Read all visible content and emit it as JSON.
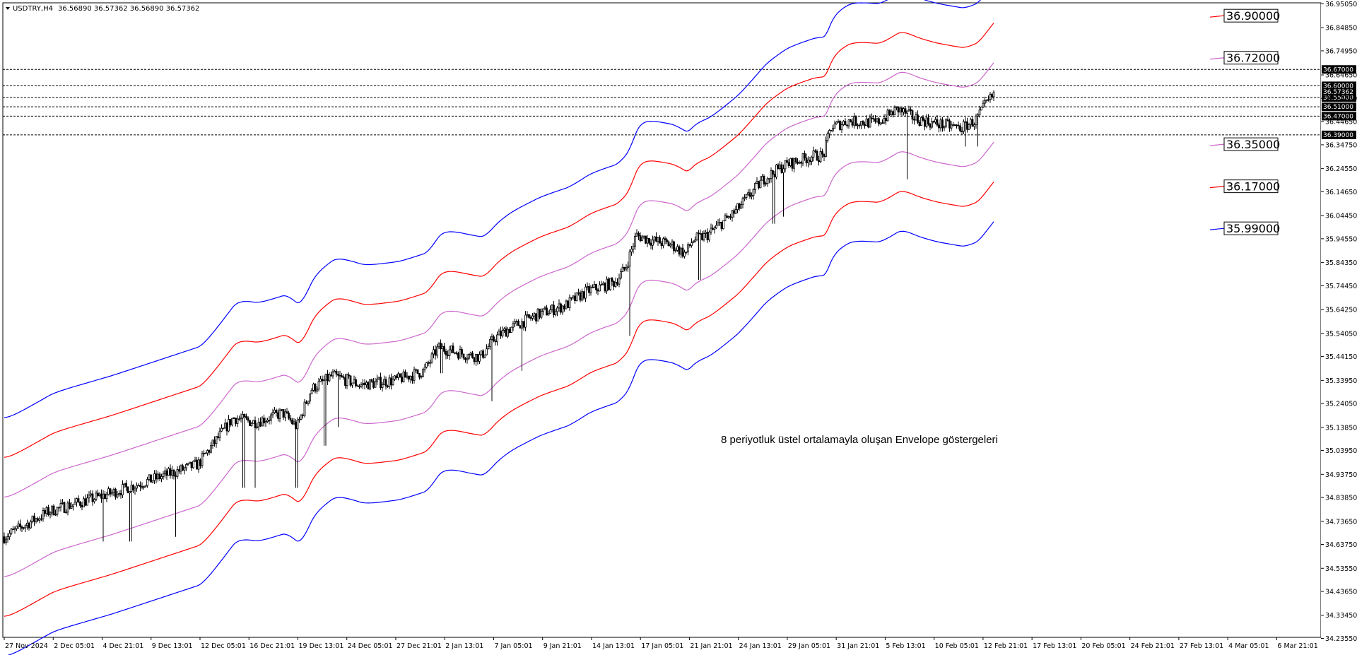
{
  "header": {
    "title": "USDTRY,H4",
    "ohlc": "36.56890 36.57362 36.56890 36.57362"
  },
  "annotation": "8 periyotluk üstel ortalamayla oluşan Envelope göstergeleri",
  "chart_data": {
    "type": "candlestick",
    "symbol": "USDTRY",
    "timeframe": "H4",
    "indicator": "Envelopes (8, Exponential)",
    "ylim": [
      36.24,
      36.955
    ],
    "grid": false,
    "y_ticks": [
      "36.95050",
      "36.84850",
      "36.74950",
      "36.64650",
      "36.54650",
      "36.44650",
      "36.34750",
      "36.24550",
      "36.14650",
      "36.04450",
      "35.94550",
      "35.84350",
      "35.74450",
      "35.64250",
      "35.54050",
      "35.44150",
      "35.33950",
      "35.24050",
      "35.13850",
      "35.03950",
      "34.93750",
      "34.83850",
      "34.73650",
      "34.63750",
      "34.53550",
      "34.43650",
      "34.33450",
      "34.23550"
    ],
    "x_ticks": [
      "27 Nov 2024",
      "2 Dec 05:01",
      "4 Dec 21:01",
      "9 Dec 13:01",
      "12 Dec 05:01",
      "16 Dec 21:01",
      "19 Dec 13:01",
      "24 Dec 05:01",
      "27 Dec 21:01",
      "2 Jan 13:01",
      "7 Jan 05:01",
      "9 Jan 21:01",
      "14 Jan 13:01",
      "17 Jan 05:01",
      "21 Jan 21:01",
      "24 Jan 13:01",
      "29 Jan 05:01",
      "31 Jan 21:01",
      "5 Feb 13:01",
      "10 Feb 05:01",
      "12 Feb 21:01",
      "17 Feb 13:01",
      "20 Feb 05:01",
      "24 Feb 21:01",
      "27 Feb 13:01",
      "4 Mar 05:01",
      "6 Mar 21:01"
    ],
    "horizontal_levels": [
      "36.67000",
      "36.60000",
      "36.55000",
      "36.51000",
      "36.47000",
      "36.39000"
    ],
    "level_partial_label": "36.57362",
    "envelope_labels": [
      {
        "value": "36.90000",
        "color": "#ff0000"
      },
      {
        "value": "36.72000",
        "color": "#cc66cc"
      },
      {
        "value": "36.35000",
        "color": "#cc66cc"
      },
      {
        "value": "36.17000",
        "color": "#ff0000"
      },
      {
        "value": "35.99000",
        "color": "#0000ff"
      }
    ],
    "anchors": [
      [
        0,
        34.66
      ],
      [
        70,
        34.78
      ],
      [
        150,
        34.85
      ],
      [
        220,
        34.92
      ],
      [
        280,
        34.98
      ],
      [
        330,
        35.18
      ],
      [
        360,
        35.16
      ],
      [
        400,
        35.2
      ],
      [
        420,
        35.14
      ],
      [
        440,
        35.3
      ],
      [
        470,
        35.36
      ],
      [
        510,
        35.32
      ],
      [
        560,
        35.34
      ],
      [
        600,
        35.38
      ],
      [
        620,
        35.48
      ],
      [
        660,
        35.45
      ],
      [
        680,
        35.44
      ],
      [
        700,
        35.52
      ],
      [
        720,
        35.56
      ],
      [
        760,
        35.62
      ],
      [
        800,
        35.66
      ],
      [
        830,
        35.72
      ],
      [
        870,
        35.76
      ],
      [
        885,
        35.82
      ],
      [
        900,
        35.96
      ],
      [
        920,
        35.94
      ],
      [
        950,
        35.92
      ],
      [
        970,
        35.88
      ],
      [
        980,
        35.94
      ],
      [
        1000,
        35.96
      ],
      [
        1040,
        36.06
      ],
      [
        1080,
        36.2
      ],
      [
        1110,
        36.26
      ],
      [
        1150,
        36.3
      ],
      [
        1165,
        36.3
      ],
      [
        1175,
        36.42
      ],
      [
        1200,
        36.45
      ],
      [
        1240,
        36.44
      ],
      [
        1270,
        36.5
      ],
      [
        1295,
        36.46
      ],
      [
        1320,
        36.44
      ],
      [
        1360,
        36.42
      ],
      [
        1380,
        36.45
      ],
      [
        1395,
        36.52
      ],
      [
        1408,
        36.57
      ]
    ],
    "wicks": [
      [
        147,
        34.65
      ],
      [
        185,
        34.65
      ],
      [
        248,
        34.67
      ],
      [
        345,
        34.88
      ],
      [
        362,
        34.88
      ],
      [
        420,
        34.88
      ],
      [
        460,
        35.06
      ],
      [
        478,
        35.14
      ],
      [
        625,
        35.37
      ],
      [
        697,
        35.25
      ],
      [
        738,
        35.38
      ],
      [
        892,
        35.53
      ],
      [
        990,
        35.77
      ],
      [
        1095,
        36.01
      ],
      [
        1108,
        36.04
      ],
      [
        1185,
        36.55
      ],
      [
        1283,
        36.2
      ],
      [
        1367,
        36.34
      ],
      [
        1383,
        36.34
      ]
    ],
    "envelopes": [
      {
        "name": "blue_upper",
        "color": "#0000ff",
        "offset": 0.51
      },
      {
        "name": "red_upper",
        "color": "#ff0000",
        "offset": 0.34
      },
      {
        "name": "violet_upper",
        "color": "#cc66cc",
        "offset": 0.17
      },
      {
        "name": "violet_lower",
        "color": "#cc66cc",
        "offset": -0.17
      },
      {
        "name": "red_lower",
        "color": "#ff0000",
        "offset": -0.34
      },
      {
        "name": "blue_lower",
        "color": "#0000ff",
        "offset": -0.51
      }
    ]
  }
}
